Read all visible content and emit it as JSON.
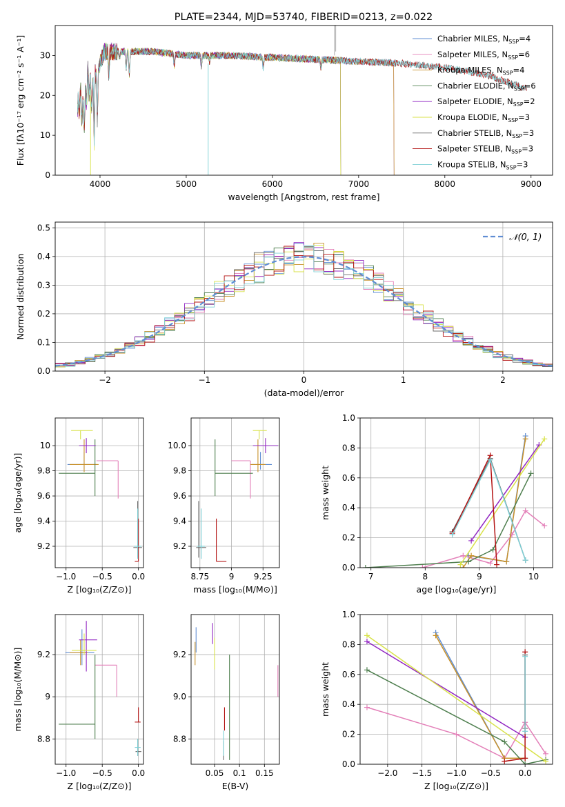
{
  "palette": [
    "#5f8dd3",
    "#e37fb8",
    "#c8912a",
    "#4f7f4f",
    "#9126c2",
    "#d8e24a",
    "#6a6a6a",
    "#b31212",
    "#7fd0d6"
  ],
  "gauss_color": "#5f8dd3",
  "chart_data": [
    {
      "id": "spectrum",
      "type": "line",
      "title": "PLATE=2344, MJD=53740, FIBERID=0213, z=0.022",
      "xlabel": "wavelength [Angstrom, rest frame]",
      "ylabel": "Flux [fλ10⁻¹⁷ erg cm⁻² s⁻¹ A⁻¹]",
      "xlim": [
        3480,
        9250
      ],
      "ylim": [
        0,
        37.5
      ],
      "xticks": [
        4000,
        5000,
        6000,
        7000,
        8000,
        9000
      ],
      "yticks": [
        0,
        10,
        20,
        30
      ],
      "legend_loc": "upper right",
      "continuum": {
        "x": [
          3750,
          3850,
          3950,
          4050,
          4300,
          4600,
          5000,
          5500,
          6000,
          6500,
          7000,
          7500,
          8000,
          8500,
          8900
        ],
        "y": [
          15,
          20,
          25,
          31,
          31,
          31,
          30,
          30,
          29.5,
          29,
          28.5,
          28,
          27,
          25,
          22
        ]
      },
      "series": [
        {
          "name": "Chabrier MILES, N",
          "sub": "SSP",
          "post": "=4",
          "x_max": 7410
        },
        {
          "name": "Salpeter MILES, N",
          "sub": "SSP",
          "post": "=6",
          "x_max": 7410
        },
        {
          "name": "Kroupa MILES, N",
          "sub": "SSP",
          "post": "=4",
          "x_max": 7410
        },
        {
          "name": "Chabrier ELODIE, N",
          "sub": "SSP",
          "post": "=6",
          "x_max": 6790
        },
        {
          "name": "Salpeter ELODIE, N",
          "sub": "SSP",
          "post": "=2",
          "x_max": 6790
        },
        {
          "name": "Kroupa ELODIE, N",
          "sub": "SSP",
          "post": "=3",
          "x_max": 6790
        },
        {
          "name": "Chabrier STELIB, N",
          "sub": "SSP",
          "post": "=3",
          "x_max": 8950
        },
        {
          "name": "Salpeter STELIB, N",
          "sub": "SSP",
          "post": "=3",
          "x_max": 8950
        },
        {
          "name": "Kroupa STELIB, N",
          "sub": "SSP",
          "post": "=3",
          "x_max": 8950
        }
      ]
    },
    {
      "id": "residuals",
      "type": "histogram",
      "xlabel": "(data-model)/error",
      "ylabel": "Normed distribution",
      "xlim": [
        -2.5,
        2.5
      ],
      "ylim": [
        0,
        0.52
      ],
      "xticks": [
        -2,
        -1,
        0,
        1,
        2
      ],
      "yticks": [
        0.0,
        0.1,
        0.2,
        0.3,
        0.4,
        0.5
      ],
      "bin_width": 0.1,
      "legend": "𝒩(0, 1)",
      "legend_loc": "upper right",
      "grid": true
    },
    {
      "id": "z_age",
      "type": "scatter",
      "xlabel": "Z [log₁₀(Z/Z⊙)]",
      "ylabel": "age  [log₁₀(age/yr)]",
      "xlim": [
        -1.15,
        0.07
      ],
      "ylim": [
        9.03,
        10.22
      ],
      "xticks": [
        -1.0,
        -0.5,
        0.0
      ],
      "yticks": [
        9.2,
        9.4,
        9.6,
        9.8,
        10.0
      ],
      "points": [
        {
          "x": -0.75,
          "y": 9.85,
          "xerr": [
            0.23,
            0.17
          ],
          "yerr": [
            0.04,
            0.1
          ]
        },
        {
          "x": -0.28,
          "y": 9.88,
          "xerr": [
            0.3,
            0.0
          ],
          "yerr": [
            0.3,
            0.0
          ]
        },
        {
          "x": -0.75,
          "y": 9.85,
          "xerr": [
            0.2,
            0.2
          ],
          "yerr": [
            0.06,
            0.2
          ]
        },
        {
          "x": -0.6,
          "y": 9.78,
          "xerr": [
            0.5,
            0.0
          ],
          "yerr": [
            0.18,
            0.27
          ]
        },
        {
          "x": -0.72,
          "y": 10.0,
          "xerr": [
            0.1,
            0.13
          ],
          "yerr": [
            0.06,
            0.06
          ]
        },
        {
          "x": -0.8,
          "y": 10.12,
          "xerr": [
            0.13,
            0.17
          ],
          "yerr": [
            0.07,
            0.0
          ]
        },
        {
          "x": -0.01,
          "y": 9.19,
          "xerr": [
            0.06,
            0.06
          ],
          "yerr": [
            0.08,
            0.37
          ]
        },
        {
          "x": 0.0,
          "y": 9.08,
          "xerr": [
            0.05,
            0.0
          ],
          "yerr": [
            0.0,
            0.34
          ]
        },
        {
          "x": -0.01,
          "y": 9.2,
          "xerr": [
            0.05,
            0.05
          ],
          "yerr": [
            0.1,
            0.3
          ]
        }
      ]
    },
    {
      "id": "mass_age",
      "type": "scatter",
      "xlabel": "mass [log₁₀(M/M⊙)]",
      "ylabel": "",
      "xlim": [
        8.68,
        9.38
      ],
      "ylim": [
        9.03,
        10.22
      ],
      "xticks": [
        8.75,
        9.0,
        9.25
      ],
      "yticks": [
        9.2,
        9.4,
        9.6,
        9.8,
        10.0
      ],
      "points": [
        {
          "x": 9.23,
          "y": 9.85,
          "xerr": [
            0.07,
            0.09
          ],
          "yerr": [
            0.04,
            0.1
          ]
        },
        {
          "x": 9.15,
          "y": 9.88,
          "xerr": [
            0.15,
            0.0
          ],
          "yerr": [
            0.3,
            0.0
          ]
        },
        {
          "x": 9.21,
          "y": 9.85,
          "xerr": [
            0.06,
            0.06
          ],
          "yerr": [
            0.06,
            0.2
          ]
        },
        {
          "x": 8.87,
          "y": 9.78,
          "xerr": [
            0.0,
            0.3
          ],
          "yerr": [
            0.18,
            0.27
          ]
        },
        {
          "x": 9.27,
          "y": 10.0,
          "xerr": [
            0.1,
            0.1
          ],
          "yerr": [
            0.06,
            0.06
          ]
        },
        {
          "x": 9.22,
          "y": 10.12,
          "xerr": [
            0.05,
            0.06
          ],
          "yerr": [
            0.07,
            0.0
          ]
        },
        {
          "x": 8.74,
          "y": 9.19,
          "xerr": [
            0.02,
            0.06
          ],
          "yerr": [
            0.08,
            0.37
          ]
        },
        {
          "x": 8.88,
          "y": 9.08,
          "xerr": [
            0.0,
            0.08
          ],
          "yerr": [
            0.0,
            0.34
          ]
        },
        {
          "x": 8.76,
          "y": 9.2,
          "xerr": [
            0.03,
            0.03
          ],
          "yerr": [
            0.1,
            0.3
          ]
        }
      ]
    },
    {
      "id": "age_weight",
      "type": "line",
      "xlabel": "age  [log₁₀(age/yr)]",
      "ylabel": "mass weight",
      "xlim": [
        6.8,
        10.35
      ],
      "ylim": [
        0,
        1.0
      ],
      "xticks": [
        7,
        8,
        9,
        10
      ],
      "yticks": [
        0.0,
        0.2,
        0.4,
        0.6,
        0.8,
        1.0
      ],
      "series": [
        {
          "x": [
            8.8,
            9.5,
            9.85
          ],
          "y": [
            0.08,
            0.04,
            0.88
          ]
        },
        {
          "x": [
            7.95,
            8.7,
            9.2,
            9.6,
            9.85,
            10.2
          ],
          "y": [
            0.0,
            0.08,
            0.03,
            0.22,
            0.38,
            0.28
          ]
        },
        {
          "x": [
            8.7,
            8.85,
            9.5,
            9.85
          ],
          "y": [
            0.0,
            0.08,
            0.04,
            0.86
          ]
        },
        {
          "x": [
            6.9,
            8.8,
            9.25,
            9.95
          ],
          "y": [
            0.0,
            0.04,
            0.12,
            0.63
          ]
        },
        {
          "x": [
            8.85,
            10.1
          ],
          "y": [
            0.18,
            0.82
          ]
        },
        {
          "x": [
            8.65,
            10.2
          ],
          "y": [
            0.02,
            0.86
          ]
        },
        {
          "x": [
            8.5,
            9.2,
            9.85
          ],
          "y": [
            0.24,
            0.73,
            0.05
          ]
        },
        {
          "x": [
            8.5,
            9.2,
            9.32
          ],
          "y": [
            0.23,
            0.75,
            0.02
          ]
        },
        {
          "x": [
            8.5,
            9.2,
            9.85
          ],
          "y": [
            0.22,
            0.72,
            0.05
          ]
        }
      ]
    },
    {
      "id": "z_mass",
      "type": "scatter",
      "xlabel": "Z [log₁₀(Z/Z⊙)]",
      "ylabel": "mass [log₁₀(M/M⊙)]",
      "xlim": [
        -1.15,
        0.07
      ],
      "ylim": [
        8.68,
        9.39
      ],
      "xticks": [
        -1.0,
        -0.5,
        0.0
      ],
      "yticks": [
        8.8,
        9.0,
        9.2
      ],
      "points": [
        {
          "x": -0.78,
          "y": 9.21,
          "xerr": [
            0.23,
            0.17
          ],
          "yerr": [
            0.06,
            0.11
          ]
        },
        {
          "x": -0.3,
          "y": 9.15,
          "xerr": [
            0.3,
            0.0
          ],
          "yerr": [
            0.15,
            0.0
          ]
        },
        {
          "x": -0.8,
          "y": 9.21,
          "xerr": [
            0.15,
            0.1
          ],
          "yerr": [
            0.06,
            0.06
          ]
        },
        {
          "x": -0.6,
          "y": 8.87,
          "xerr": [
            0.5,
            0.0
          ],
          "yerr": [
            0.07,
            0.33
          ]
        },
        {
          "x": -0.72,
          "y": 9.27,
          "xerr": [
            0.1,
            0.15
          ],
          "yerr": [
            0.15,
            0.09
          ]
        },
        {
          "x": -0.75,
          "y": 9.22,
          "xerr": [
            0.17,
            0.17
          ],
          "yerr": [
            0.02,
            0.08
          ]
        },
        {
          "x": -0.01,
          "y": 8.74,
          "xerr": [
            0.03,
            0.05
          ],
          "yerr": [
            0.02,
            0.06
          ]
        },
        {
          "x": 0.0,
          "y": 8.88,
          "xerr": [
            0.05,
            0.03
          ],
          "yerr": [
            0.0,
            0.07
          ]
        },
        {
          "x": -0.01,
          "y": 8.76,
          "xerr": [
            0.04,
            0.04
          ],
          "yerr": [
            0.04,
            0.04
          ]
        }
      ]
    },
    {
      "id": "ebv_mass",
      "type": "scatter",
      "xlabel": "E(B-V)",
      "ylabel": "",
      "xlim": [
        0.003,
        0.18
      ],
      "ylim": [
        8.68,
        9.39
      ],
      "xticks": [
        0.05,
        0.1,
        0.15
      ],
      "yticks": [
        8.8,
        9.0,
        9.2
      ],
      "points": [
        {
          "x": 0.013,
          "y": 9.26,
          "xerr": [
            0,
            0
          ],
          "yerr": [
            0.05,
            0.07
          ]
        },
        {
          "x": 0.177,
          "y": 9.05,
          "xerr": [
            0,
            0
          ],
          "yerr": [
            0.05,
            0.1
          ]
        },
        {
          "x": 0.011,
          "y": 9.2,
          "xerr": [
            0,
            0
          ],
          "yerr": [
            0.05,
            0.06
          ]
        },
        {
          "x": 0.08,
          "y": 8.87,
          "xerr": [
            0,
            0
          ],
          "yerr": [
            0.17,
            0.33
          ]
        },
        {
          "x": 0.046,
          "y": 9.3,
          "xerr": [
            0,
            0
          ],
          "yerr": [
            0.05,
            0.05
          ]
        },
        {
          "x": 0.05,
          "y": 9.2,
          "xerr": [
            0,
            0
          ],
          "yerr": [
            0.07,
            0.08
          ]
        },
        {
          "x": 0.068,
          "y": 8.75,
          "xerr": [
            0,
            0
          ],
          "yerr": [
            0.05,
            0.04
          ]
        },
        {
          "x": 0.07,
          "y": 8.9,
          "xerr": [
            0,
            0
          ],
          "yerr": [
            0.06,
            0.05
          ]
        },
        {
          "x": 0.068,
          "y": 8.78,
          "xerr": [
            0,
            0
          ],
          "yerr": [
            0.06,
            0.06
          ]
        }
      ]
    },
    {
      "id": "z_weight",
      "type": "line",
      "xlabel": "Z [log₁₀(Z/Z⊙)]",
      "ylabel": "mass weight",
      "xlim": [
        -2.4,
        0.4
      ],
      "ylim": [
        0,
        1.0
      ],
      "xticks": [
        -2.0,
        -1.5,
        -1.0,
        -0.5,
        0.0
      ],
      "yticks": [
        0.0,
        0.2,
        0.4,
        0.6,
        0.8,
        1.0
      ],
      "series": [
        {
          "x": [
            -1.3,
            -0.3,
            0.0
          ],
          "y": [
            0.88,
            0.04,
            0.04
          ]
        },
        {
          "x": [
            -2.3,
            -1.0,
            -0.3,
            0.0,
            0.3
          ],
          "y": [
            0.38,
            0.2,
            0.04,
            0.28,
            0.07
          ]
        },
        {
          "x": [
            -1.3,
            -0.3,
            0.0
          ],
          "y": [
            0.86,
            0.04,
            0.04
          ]
        },
        {
          "x": [
            -2.3,
            -0.3,
            0.0,
            0.3
          ],
          "y": [
            0.63,
            0.15,
            0.0,
            0.03
          ]
        },
        {
          "x": [
            -2.3,
            0.0
          ],
          "y": [
            0.82,
            0.18
          ]
        },
        {
          "x": [
            -2.3,
            0.3
          ],
          "y": [
            0.86,
            0.02
          ]
        },
        {
          "x": [
            0.0,
            0.0
          ],
          "y": [
            0.24,
            0.73
          ]
        },
        {
          "x": [
            -0.3,
            0.0,
            0.0
          ],
          "y": [
            0.02,
            0.04,
            0.75
          ]
        },
        {
          "x": [
            0.0,
            0.0
          ],
          "y": [
            0.22,
            0.72
          ]
        }
      ]
    }
  ]
}
